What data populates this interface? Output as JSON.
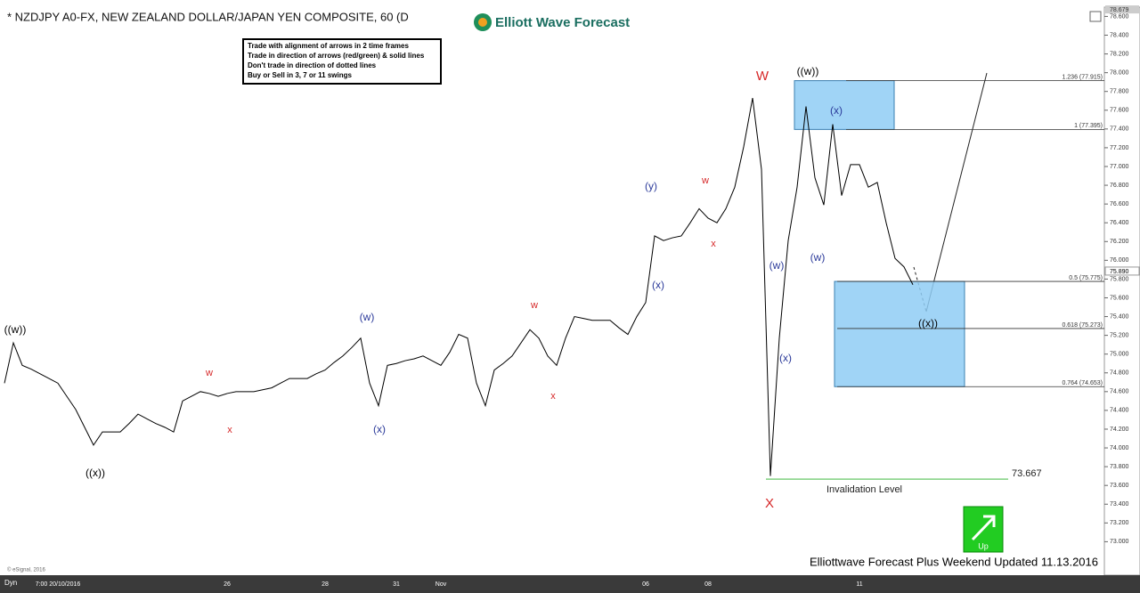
{
  "chart_data": {
    "type": "line",
    "title": "* NZDJPY A0-FX, NEW ZEALAND DOLLAR/JAPAN YEN COMPOSITE, 60 (D",
    "logo": "Elliott Wave Forecast",
    "rules": [
      "Trade with alignment of arrows in 2 time frames",
      "Trade in direction of arrows (red/green) & solid lines",
      "Don't trade in direction of dotted lines",
      "Buy or Sell in 3, 7 or 11 swings"
    ],
    "footer": "Elliottwave Forecast Plus Weekend Updated 11.13.2016",
    "copyright": "© eSignal, 2016",
    "session": "Dyn",
    "button": "Up",
    "color": "#000000",
    "categories": [
      null,
      null,
      null,
      null,
      null,
      null,
      "7:00 20/10/2016",
      null,
      null,
      null,
      null,
      null,
      null,
      null,
      null,
      null,
      null,
      null,
      null,
      null,
      null,
      null,
      null,
      null,
      null,
      "26",
      null,
      null,
      null,
      null,
      null,
      null,
      null,
      null,
      null,
      null,
      "28",
      null,
      null,
      null,
      null,
      null,
      null,
      null,
      "31",
      null,
      null,
      null,
      null,
      "Nov",
      null,
      null,
      null,
      null,
      null,
      null,
      null,
      null,
      null,
      null,
      null,
      null,
      null,
      null,
      null,
      null,
      null,
      null,
      null,
      null,
      null,
      null,
      "06",
      null,
      null,
      null,
      null,
      null,
      null,
      "08",
      null,
      null,
      null,
      null,
      null,
      null,
      null,
      null,
      null,
      null,
      null,
      null,
      null,
      null,
      null,
      null,
      "11",
      null,
      null,
      null,
      null,
      null,
      null
    ],
    "values": [
      74.69,
      75.12,
      74.88,
      74.84,
      74.79,
      74.74,
      74.69,
      74.55,
      74.41,
      74.22,
      74.03,
      74.17,
      74.17,
      74.17,
      74.26,
      74.36,
      74.31,
      74.26,
      74.22,
      74.17,
      74.5,
      74.55,
      74.6,
      74.58,
      74.55,
      74.58,
      74.6,
      74.6,
      74.6,
      74.62,
      74.64,
      74.69,
      74.74,
      74.74,
      74.74,
      74.79,
      74.83,
      74.91,
      74.98,
      75.07,
      75.17,
      74.69,
      74.45,
      74.88,
      74.9,
      74.93,
      74.95,
      74.98,
      74.93,
      74.88,
      75.02,
      75.21,
      75.17,
      74.69,
      74.45,
      74.83,
      74.9,
      74.98,
      75.12,
      75.26,
      75.17,
      74.98,
      74.88,
      75.17,
      75.4,
      75.38,
      75.36,
      75.36,
      75.36,
      75.28,
      75.21,
      75.4,
      75.55,
      76.26,
      76.21,
      76.24,
      76.26,
      76.4,
      76.55,
      76.45,
      76.4,
      76.55,
      76.78,
      77.21,
      77.73,
      76.97,
      73.7,
      75.17,
      76.21,
      76.78,
      77.64,
      76.88,
      76.59,
      77.45,
      76.69,
      77.02,
      77.02,
      76.78,
      76.83,
      76.4,
      76.02,
      75.93,
      75.74
    ],
    "ylim": [
      72.7,
      78.68
    ],
    "yticks": [
      {
        "value": 73.0,
        "label": "73.000"
      },
      {
        "value": 73.2,
        "label": "73.200"
      },
      {
        "value": 73.4,
        "label": "73.400"
      },
      {
        "value": 73.6,
        "label": "73.600"
      },
      {
        "value": 73.8,
        "label": "73.800"
      },
      {
        "value": 74.0,
        "label": "74.000"
      },
      {
        "value": 74.2,
        "label": "74.200"
      },
      {
        "value": 74.4,
        "label": "74.400"
      },
      {
        "value": 74.6,
        "label": "74.600"
      },
      {
        "value": 74.8,
        "label": "74.800"
      },
      {
        "value": 75.0,
        "label": "75.000"
      },
      {
        "value": 75.2,
        "label": "75.200"
      },
      {
        "value": 75.4,
        "label": "75.400"
      },
      {
        "value": 75.6,
        "label": "75.600"
      },
      {
        "value": 75.8,
        "label": "75.800"
      },
      {
        "value": 76.0,
        "label": "76.000"
      },
      {
        "value": 76.2,
        "label": "76.200"
      },
      {
        "value": 76.4,
        "label": "76.400"
      },
      {
        "value": 76.6,
        "label": "76.600"
      },
      {
        "value": 76.8,
        "label": "76.800"
      },
      {
        "value": 77.0,
        "label": "77.000"
      },
      {
        "value": 77.2,
        "label": "77.200"
      },
      {
        "value": 77.4,
        "label": "77.400"
      },
      {
        "value": 77.6,
        "label": "77.600"
      },
      {
        "value": 77.8,
        "label": "77.800"
      },
      {
        "value": 78.0,
        "label": "78.000"
      },
      {
        "value": 78.2,
        "label": "78.200"
      },
      {
        "value": 78.4,
        "label": "78.400"
      },
      {
        "value": 78.6,
        "label": "78.600"
      }
    ],
    "axis_top": {
      "value": 78.679,
      "label": "78.679"
    },
    "last_price": {
      "value": 75.89,
      "label": "75.890"
    },
    "fib_levels": [
      {
        "value": 77.915,
        "label": "1.236 (77.915)"
      },
      {
        "value": 77.395,
        "label": "1 (77.395)"
      },
      {
        "value": 75.775,
        "label": "0.5 (75.775)"
      },
      {
        "value": 75.273,
        "label": "0.618 (75.273)"
      },
      {
        "value": 74.653,
        "label": "0.764 (74.653)"
      }
    ],
    "invalidation": {
      "value": 73.667,
      "label": "73.667",
      "text": "Invalidation Level"
    },
    "wave_labels": [
      {
        "text": "((w))",
        "color": "#000000"
      },
      {
        "text": "((x))",
        "color": "#000000"
      },
      {
        "text": "w",
        "color": "#d62728"
      },
      {
        "text": "x",
        "color": "#d62728"
      },
      {
        "text": "(w)",
        "color": "#2b3a9a"
      },
      {
        "text": "(x)",
        "color": "#2b3a9a"
      },
      {
        "text": "w",
        "color": "#d62728"
      },
      {
        "text": "x",
        "color": "#d62728"
      },
      {
        "text": "(y)",
        "color": "#2b3a9a"
      },
      {
        "text": "(x)",
        "color": "#2b3a9a"
      },
      {
        "text": "w",
        "color": "#d62728"
      },
      {
        "text": "x",
        "color": "#d62728"
      },
      {
        "text": "W",
        "color": "#d62728"
      },
      {
        "text": "X",
        "color": "#d62728"
      },
      {
        "text": "((w))",
        "color": "#000000"
      },
      {
        "text": "(x)",
        "color": "#2b3a9a"
      },
      {
        "text": "(w)",
        "color": "#2b3a9a"
      },
      {
        "text": "(x)",
        "color": "#2b3a9a"
      },
      {
        "text": "(w)",
        "color": "#2b3a9a"
      },
      {
        "text": "((x))",
        "color": "#000000"
      }
    ]
  }
}
